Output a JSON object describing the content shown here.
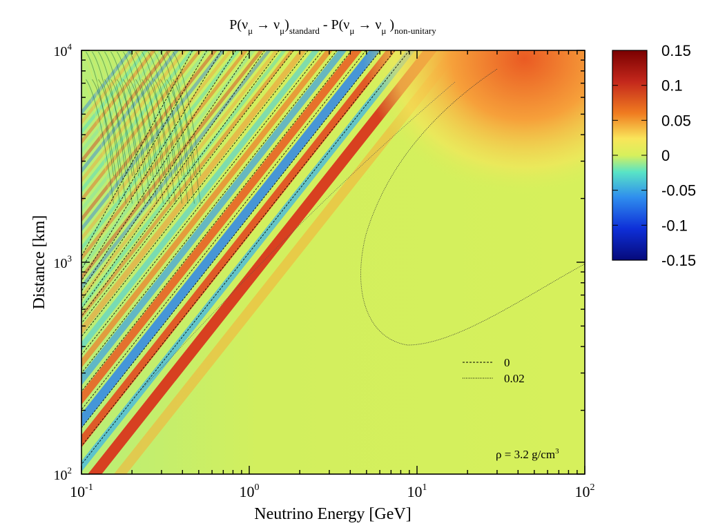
{
  "chart_data": {
    "type": "heatmap",
    "title": {
      "p1": "P(ν",
      "sub1": "μ",
      "arrow1": " → ν",
      "sub2": "μ",
      "close1": ")",
      "label1": "standard",
      "minus": " - P(ν",
      "sub3": "μ",
      "arrow2": " → ν",
      "sub4": "μ",
      "close2": " )",
      "label2": "non-unitary"
    },
    "xlabel": "Neutrino Energy [GeV]",
    "ylabel": "Distance [km]",
    "x_scale": "log",
    "y_scale": "log",
    "xlim": [
      0.1,
      100
    ],
    "ylim": [
      100,
      10000
    ],
    "x_ticks": [
      {
        "base": "10",
        "exp": "-1",
        "value": 0.1
      },
      {
        "base": "10",
        "exp": "0",
        "value": 1
      },
      {
        "base": "10",
        "exp": "1",
        "value": 10
      },
      {
        "base": "10",
        "exp": "2",
        "value": 100
      }
    ],
    "y_ticks": [
      {
        "base": "10",
        "exp": "2",
        "value": 100
      },
      {
        "base": "10",
        "exp": "3",
        "value": 1000
      },
      {
        "base": "10",
        "exp": "4",
        "value": 10000
      }
    ],
    "colorbar": {
      "min": -0.15,
      "max": 0.15,
      "tick_labels": [
        "0.15",
        "0.1",
        "0.05",
        "0",
        "-0.05",
        "-0.1",
        "-0.15"
      ],
      "tick_values": [
        0.15,
        0.1,
        0.05,
        0,
        -0.05,
        -0.1,
        -0.15
      ]
    },
    "contours": [
      {
        "level": "0",
        "style": "dashed"
      },
      {
        "level": "0.02",
        "style": "dotted"
      }
    ],
    "annotation": {
      "text": "ρ = 3.2 g/cm",
      "sup": "3"
    }
  }
}
